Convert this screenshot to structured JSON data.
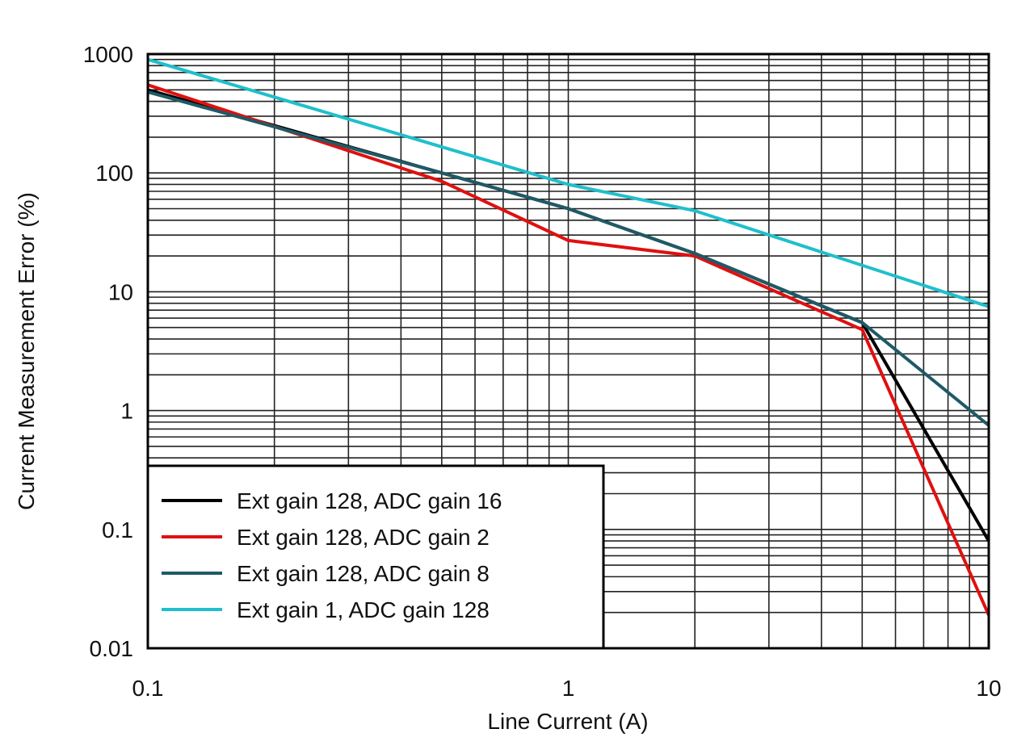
{
  "chart_data": {
    "type": "line",
    "title": "",
    "xlabel": "Line Current (A)",
    "ylabel": "Current Measurement Error (%)",
    "xscale": "log",
    "yscale": "log",
    "xlim": [
      0.1,
      10
    ],
    "ylim": [
      0.01,
      1000
    ],
    "xticks": [
      "0.1",
      "1",
      "10"
    ],
    "yticks": [
      "0.01",
      "0.1",
      "1",
      "10",
      "100",
      "1000"
    ],
    "grid": true,
    "legend_position": "bottom-left",
    "series": [
      {
        "name": "Ext gain 128, ADC gain 16",
        "color": "#000000",
        "x": [
          0.1,
          0.5,
          1,
          2,
          5,
          10
        ],
        "y": [
          500,
          100,
          50,
          21,
          5.5,
          0.08
        ]
      },
      {
        "name": "Ext gain 128, ADC gain 2",
        "color": "#e01010",
        "x": [
          0.1,
          0.5,
          1,
          2,
          5,
          10
        ],
        "y": [
          550,
          85,
          27,
          20,
          4.8,
          0.019
        ]
      },
      {
        "name": "Ext gain 128, ADC gain 8",
        "color": "#1f5a66",
        "x": [
          0.1,
          0.5,
          1,
          2,
          5,
          10
        ],
        "y": [
          480,
          100,
          50,
          21,
          5.5,
          0.75
        ]
      },
      {
        "name": "Ext gain 1, ADC gain 128",
        "color": "#1fbfcc",
        "x": [
          0.1,
          1,
          2,
          10
        ],
        "y": [
          900,
          80,
          48,
          7.5
        ]
      }
    ]
  }
}
